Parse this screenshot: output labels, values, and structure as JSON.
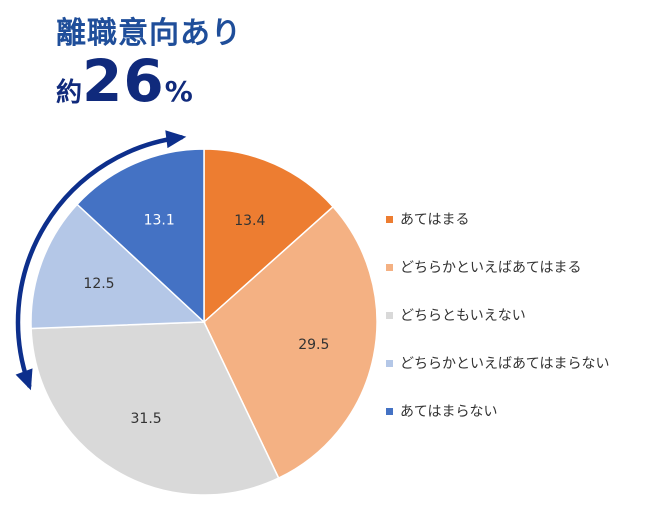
{
  "headline": "離職意向あり",
  "callout": {
    "prefix": "約",
    "value": "26",
    "unit": "%"
  },
  "colors": {
    "arrow": "#0d2f8c",
    "headline": "#1f4e9a"
  },
  "chart_data": {
    "type": "pie",
    "title": "",
    "start_angle_deg": 0,
    "direction": "clockwise",
    "slices": [
      {
        "label": "あてはまる",
        "value": 13.4,
        "value_label": "13.4",
        "color": "#ed7d31",
        "label_color": "#333333"
      },
      {
        "label": "どちらかといえばあてはまる",
        "value": 29.5,
        "value_label": "29.5",
        "color": "#f4b183",
        "label_color": "#333333"
      },
      {
        "label": "どちらともいえない",
        "value": 31.5,
        "value_label": "31.5",
        "color": "#d9d9d9",
        "label_color": "#333333"
      },
      {
        "label": "どちらかといえばあてはまらない",
        "value": 12.5,
        "value_label": "12.5",
        "color": "#b4c7e7",
        "label_color": "#333333"
      },
      {
        "label": "あてはまらない",
        "value": 13.1,
        "value_label": "13.1",
        "color": "#4472c4",
        "label_color": "#ffffff"
      }
    ],
    "legend_position": "right"
  }
}
